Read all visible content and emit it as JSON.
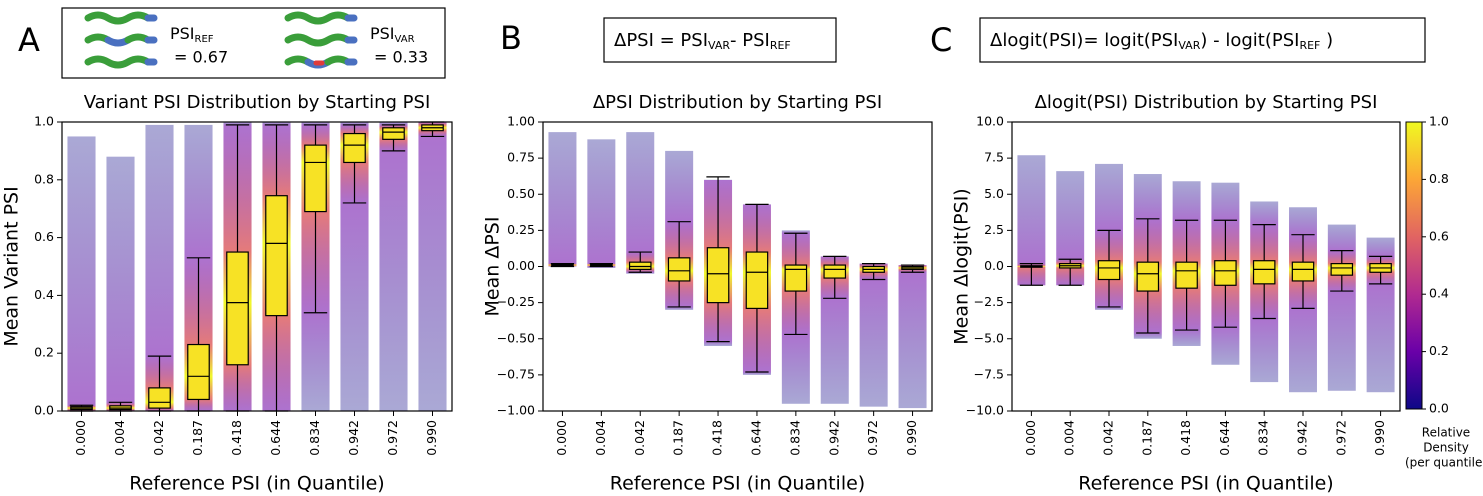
{
  "chart_data": [
    {
      "type": "box",
      "panel_label": "A",
      "key": [
        {
          "label": "PSI",
          "sub": "REF",
          "value_text": "= 0.67"
        },
        {
          "label": "PSI",
          "sub": "VAR",
          "value_text": "= 0.33"
        }
      ],
      "title": "Variant PSI Distribution by Starting PSI",
      "xlabel": "Reference PSI (in Quantile)",
      "ylabel": "Mean Variant PSI",
      "categories": [
        "0.000",
        "0.004",
        "0.042",
        "0.187",
        "0.418",
        "0.644",
        "0.834",
        "0.942",
        "0.972",
        "0.990"
      ],
      "ylim": [
        0,
        1
      ],
      "yticks": [
        {
          "value": 0,
          "label": "0.0"
        },
        {
          "value": 0.2,
          "label": "0.2"
        },
        {
          "value": 0.4,
          "label": "0.4"
        },
        {
          "value": 0.6,
          "label": "0.6"
        },
        {
          "value": 0.8,
          "label": "0.8"
        },
        {
          "value": 1,
          "label": "1.0"
        }
      ],
      "box_color": "#f7e225",
      "boxes": {
        "whislo": [
          0,
          0,
          0,
          0,
          0,
          0,
          0.34,
          0.72,
          0.9,
          0.95
        ],
        "q1": [
          0.005,
          0.005,
          0.01,
          0.04,
          0.16,
          0.33,
          0.69,
          0.86,
          0.94,
          0.97
        ],
        "med": [
          0.01,
          0.01,
          0.03,
          0.12,
          0.375,
          0.58,
          0.86,
          0.92,
          0.965,
          0.98
        ],
        "q3": [
          0.015,
          0.018,
          0.08,
          0.23,
          0.55,
          0.745,
          0.92,
          0.96,
          0.98,
          0.99
        ],
        "whishi": [
          0.02,
          0.03,
          0.19,
          0.53,
          0.99,
          0.99,
          0.99,
          0.99,
          0.99,
          1
        ]
      },
      "point_range": {
        "low": [
          0,
          0,
          0,
          0,
          0,
          0,
          0,
          0,
          0,
          0
        ],
        "high": [
          0.95,
          0.88,
          0.99,
          0.99,
          1,
          1,
          1,
          1,
          1,
          1
        ]
      },
      "colormap": [
        "#0d0887",
        "#6a00a8",
        "#b12a90",
        "#e16462",
        "#fca636",
        "#f0f921"
      ]
    },
    {
      "type": "box",
      "panel_label": "B",
      "formula": [
        {
          "text": "ΔPSI = PSI"
        },
        {
          "sub": "VAR"
        },
        {
          "text": "- PSI"
        },
        {
          "sub": "REF"
        }
      ],
      "title": "ΔPSI Distribution by Starting PSI",
      "xlabel": "Reference PSI (in Quantile)",
      "ylabel": "Mean ΔPSI",
      "categories": [
        "0.000",
        "0.004",
        "0.042",
        "0.187",
        "0.418",
        "0.644",
        "0.834",
        "0.942",
        "0.972",
        "0.990"
      ],
      "ylim": [
        -1,
        1
      ],
      "yticks": [
        {
          "value": -1,
          "label": "−1.00"
        },
        {
          "value": -0.75,
          "label": "−0.75"
        },
        {
          "value": -0.5,
          "label": "−0.50"
        },
        {
          "value": -0.25,
          "label": "−0.25"
        },
        {
          "value": 0,
          "label": "0.00"
        },
        {
          "value": 0.25,
          "label": "0.25"
        },
        {
          "value": 0.5,
          "label": "0.50"
        },
        {
          "value": 0.75,
          "label": "0.75"
        },
        {
          "value": 1,
          "label": "1.00"
        }
      ],
      "box_color": "#f7e225",
      "boxes": {
        "whislo": [
          0,
          0,
          -0.04,
          -0.28,
          -0.52,
          -0.73,
          -0.47,
          -0.22,
          -0.09,
          -0.04
        ],
        "q1": [
          0.005,
          0.005,
          -0.02,
          -0.1,
          -0.25,
          -0.29,
          -0.17,
          -0.08,
          -0.04,
          -0.02
        ],
        "med": [
          0.01,
          0.01,
          0,
          -0.03,
          -0.05,
          -0.04,
          -0.02,
          -0.02,
          -0.02,
          -0.01
        ],
        "q3": [
          0.015,
          0.015,
          0.03,
          0.06,
          0.13,
          0.1,
          0.01,
          0.01,
          0,
          0
        ],
        "whishi": [
          0.02,
          0.02,
          0.1,
          0.31,
          0.62,
          0.43,
          0.23,
          0.07,
          0.02,
          0.01
        ]
      },
      "point_range": {
        "low": [
          0,
          -0.01,
          -0.05,
          -0.3,
          -0.55,
          -0.75,
          -0.95,
          -0.95,
          -0.97,
          -0.98
        ],
        "high": [
          0.93,
          0.88,
          0.93,
          0.8,
          0.6,
          0.43,
          0.25,
          0.07,
          0.02,
          0.01
        ]
      },
      "colormap": [
        "#0d0887",
        "#6a00a8",
        "#b12a90",
        "#e16462",
        "#fca636",
        "#f0f921"
      ]
    },
    {
      "type": "box",
      "panel_label": "C",
      "formula": [
        {
          "text": "Δlogit(PSI)= logit(PSI"
        },
        {
          "sub": "VAR"
        },
        {
          "text": ") - logit(PSI"
        },
        {
          "sub": "REF"
        },
        {
          "text": " )"
        }
      ],
      "title": "Δlogit(PSI) Distribution by Starting PSI",
      "xlabel": "Reference PSI (in Quantile)",
      "ylabel": "Mean Δlogit(PSI)",
      "categories": [
        "0.000",
        "0.004",
        "0.042",
        "0.187",
        "0.418",
        "0.644",
        "0.834",
        "0.942",
        "0.972",
        "0.990"
      ],
      "ylim": [
        -10,
        10
      ],
      "yticks": [
        {
          "value": -10,
          "label": "−10.0"
        },
        {
          "value": -7.5,
          "label": "−7.5"
        },
        {
          "value": -5,
          "label": "−5.0"
        },
        {
          "value": -2.5,
          "label": "−2.5"
        },
        {
          "value": 0,
          "label": "0.0"
        },
        {
          "value": 2.5,
          "label": "2.5"
        },
        {
          "value": 5,
          "label": "5.0"
        },
        {
          "value": 7.5,
          "label": "7.5"
        },
        {
          "value": 10,
          "label": "10.0"
        }
      ],
      "box_color": "#f7e225",
      "boxes": {
        "whislo": [
          -1.3,
          -1.3,
          -2.8,
          -4.6,
          -4.4,
          -4.2,
          -3.6,
          -2.9,
          -1.7,
          -1.2
        ],
        "q1": [
          -0.05,
          -0.1,
          -0.9,
          -1.7,
          -1.5,
          -1.3,
          -1.2,
          -1,
          -0.6,
          -0.4
        ],
        "med": [
          0,
          0.05,
          -0.1,
          -0.5,
          -0.3,
          -0.3,
          -0.2,
          -0.2,
          -0.1,
          -0.1
        ],
        "q3": [
          0.05,
          0.2,
          0.4,
          0.3,
          0.3,
          0.4,
          0.4,
          0.3,
          0.2,
          0.2
        ],
        "whishi": [
          0.2,
          0.5,
          2.5,
          3.3,
          3.2,
          3.2,
          2.9,
          2.2,
          1.1,
          0.7
        ]
      },
      "point_range": {
        "low": [
          -1.3,
          -1.3,
          -3,
          -5,
          -5.5,
          -6.8,
          -8,
          -8.7,
          -8.6,
          -8.7
        ],
        "high": [
          7.7,
          6.6,
          7.1,
          6.4,
          5.9,
          5.8,
          4.5,
          4.1,
          2.9,
          2
        ]
      },
      "colormap": [
        "#0d0887",
        "#6a00a8",
        "#b12a90",
        "#e16462",
        "#fca636",
        "#f0f921"
      ],
      "colorbar": {
        "label": [
          "Relative",
          "Density",
          "(per quantile)"
        ],
        "lim": [
          0,
          1
        ],
        "ticks": [
          {
            "value": 0,
            "label": "0.0"
          },
          {
            "value": 0.2,
            "label": "0.2"
          },
          {
            "value": 0.4,
            "label": "0.4"
          },
          {
            "value": 0.6,
            "label": "0.6"
          },
          {
            "value": 0.8,
            "label": "0.8"
          },
          {
            "value": 1,
            "label": "1.0"
          }
        ]
      }
    }
  ]
}
